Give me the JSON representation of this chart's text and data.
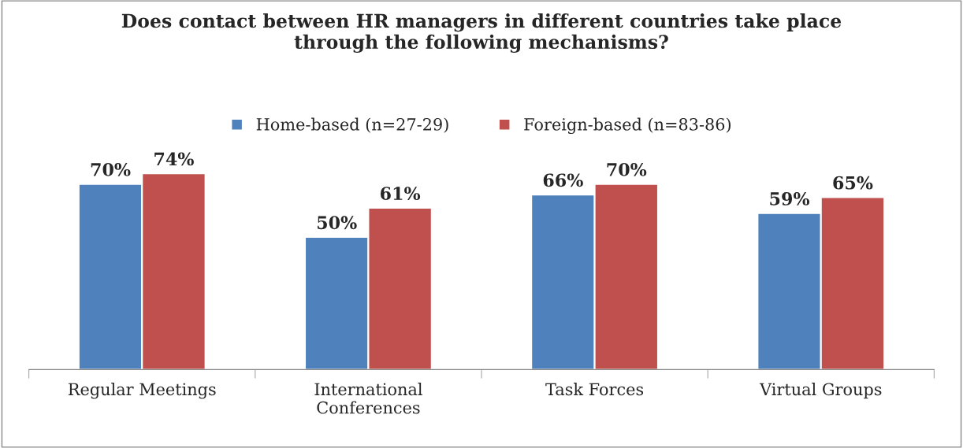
{
  "chart_data": {
    "type": "bar",
    "title": "Does contact between HR managers in different countries take place\nthrough the following mechanisms?",
    "categories": [
      "Regular Meetings",
      "International\nConferences",
      "Task Forces",
      "Virtual Groups"
    ],
    "series": [
      {
        "name": "Home-based (n=27-29)",
        "color": "#4f81bd",
        "values": [
          70,
          50,
          66,
          59
        ],
        "value_labels": [
          "70%",
          "50%",
          "66%",
          "59%"
        ]
      },
      {
        "name": "Foreign-based (n=83-86)",
        "color": "#c0504d",
        "values": [
          74,
          61,
          70,
          65
        ],
        "value_labels": [
          "74%",
          "61%",
          "70%",
          "65%"
        ]
      }
    ],
    "legend": "top",
    "grid": false
  }
}
